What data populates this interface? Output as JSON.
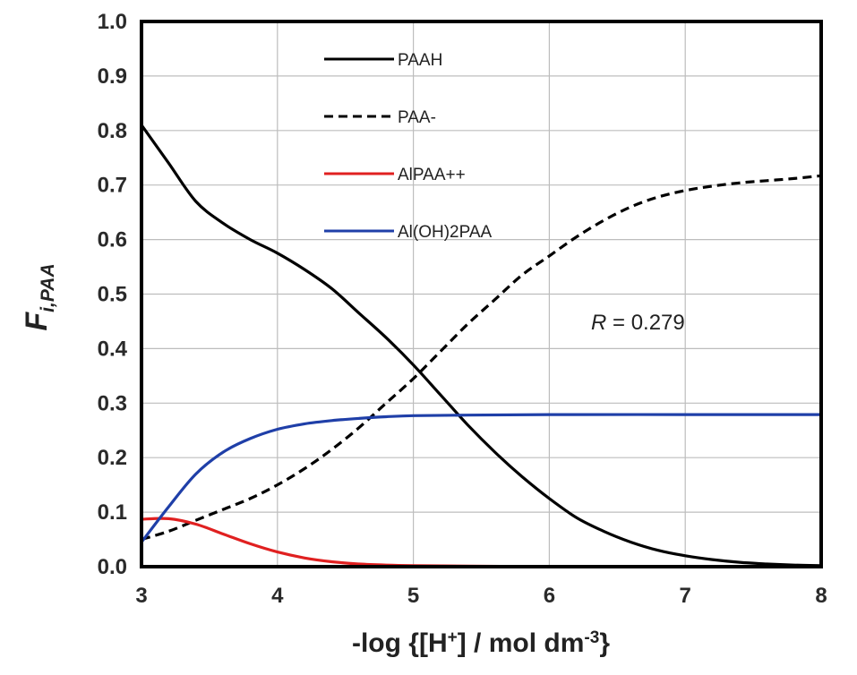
{
  "chart_data": {
    "type": "line",
    "xlabel": {
      "prefix": "-log {[H",
      "sup1": "+",
      "mid": "] / mol dm",
      "sup2": "-3",
      "suffix": "}"
    },
    "ylabel": {
      "main": "F",
      "sub": "i,PAA"
    },
    "xlim": [
      3,
      8
    ],
    "ylim": [
      0,
      1.0
    ],
    "xticks": [
      "3",
      "4",
      "5",
      "6",
      "7",
      "8"
    ],
    "yticks": [
      "0.0",
      "0.1",
      "0.2",
      "0.3",
      "0.4",
      "0.5",
      "0.6",
      "0.7",
      "0.8",
      "0.9",
      "1.0"
    ],
    "grid": true,
    "legend_position": "top-center",
    "annotation": {
      "italic": "R",
      "text": " = 0.279"
    },
    "series": [
      {
        "name": "PAAH",
        "color": "#000000",
        "dash": "solid",
        "x": [
          3.0,
          3.2,
          3.4,
          3.6,
          3.8,
          4.0,
          4.2,
          4.4,
          4.6,
          4.8,
          5.0,
          5.2,
          5.4,
          5.6,
          5.8,
          6.0,
          6.2,
          6.4,
          6.6,
          6.8,
          7.0,
          7.2,
          7.4,
          7.6,
          7.8,
          8.0
        ],
        "y": [
          0.81,
          0.74,
          0.67,
          0.63,
          0.6,
          0.575,
          0.545,
          0.51,
          0.465,
          0.42,
          0.37,
          0.315,
          0.26,
          0.21,
          0.165,
          0.125,
          0.09,
          0.065,
          0.045,
          0.03,
          0.02,
          0.013,
          0.008,
          0.005,
          0.003,
          0.002
        ]
      },
      {
        "name": "PAA-",
        "color": "#000000",
        "dash": "dashed",
        "x": [
          3.0,
          3.2,
          3.4,
          3.6,
          3.8,
          4.0,
          4.2,
          4.4,
          4.6,
          4.8,
          5.0,
          5.2,
          5.4,
          5.6,
          5.8,
          6.0,
          6.2,
          6.4,
          6.6,
          6.8,
          7.0,
          7.2,
          7.4,
          7.6,
          7.8,
          8.0
        ],
        "y": [
          0.05,
          0.065,
          0.085,
          0.105,
          0.125,
          0.15,
          0.18,
          0.215,
          0.255,
          0.3,
          0.345,
          0.395,
          0.445,
          0.49,
          0.535,
          0.57,
          0.605,
          0.635,
          0.66,
          0.678,
          0.69,
          0.698,
          0.704,
          0.708,
          0.712,
          0.717
        ]
      },
      {
        "name": "AlPAA++",
        "color": "#e02020",
        "dash": "solid",
        "x": [
          3.0,
          3.2,
          3.4,
          3.6,
          3.8,
          4.0,
          4.2,
          4.4,
          4.6,
          4.8,
          5.0,
          5.4,
          6.0,
          7.0,
          8.0
        ],
        "y": [
          0.087,
          0.088,
          0.078,
          0.06,
          0.042,
          0.027,
          0.016,
          0.009,
          0.005,
          0.003,
          0.002,
          0.001,
          0.0,
          0.0,
          0.0
        ]
      },
      {
        "name": "Al(OH)2PAA",
        "color": "#1f3fa8",
        "dash": "solid",
        "x": [
          3.0,
          3.2,
          3.4,
          3.6,
          3.8,
          4.0,
          4.2,
          4.4,
          4.6,
          4.8,
          5.0,
          5.4,
          6.0,
          7.0,
          8.0
        ],
        "y": [
          0.045,
          0.11,
          0.17,
          0.21,
          0.235,
          0.252,
          0.262,
          0.268,
          0.272,
          0.275,
          0.277,
          0.278,
          0.279,
          0.279,
          0.279
        ]
      }
    ]
  }
}
